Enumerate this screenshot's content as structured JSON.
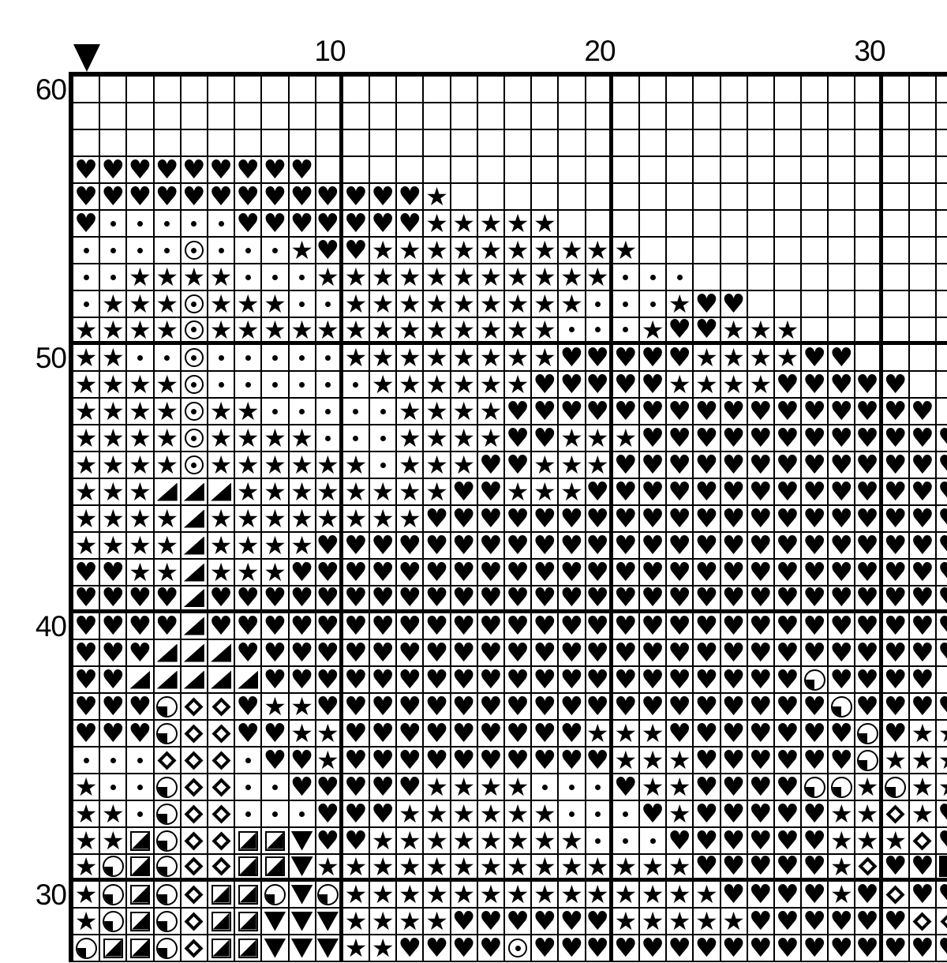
{
  "chart": {
    "type": "cross-stitch-pattern-grid",
    "colors": {
      "foreground": "#000000",
      "background": "#ffffff"
    },
    "column_labels": [
      {
        "label": "10",
        "column": 10
      },
      {
        "label": "20",
        "column": 20
      },
      {
        "label": "30",
        "column": 30
      }
    ],
    "row_labels": [
      {
        "label": "60",
        "row": 1
      },
      {
        "label": "50",
        "row": 11
      },
      {
        "label": "40",
        "row": 21
      },
      {
        "label": "30",
        "row": 31
      }
    ],
    "marker": {
      "icon": "down-triangle-marker",
      "at_column": 1
    },
    "grid": {
      "visible_columns": 33,
      "visible_rows": 33,
      "bold_line_every": 10,
      "symbol_map": {
        ".": "empty",
        "H": "heart",
        "S": "star",
        "d": "dot",
        "O": "circled-dot",
        "T": "triangle-lower-right",
        "Q": "quarter-circle",
        "D": "diamond-outline",
        "X": "half-square",
        "V": "triangle-down",
        "B": "solid-square"
      },
      "glyphs": {
        "heart": "♥",
        "star": "★"
      },
      "rows": [
        ".................................",
        ".................................",
        ".................................",
        "HHHHHHHHH........................",
        "HHHHHHHHHHHHHS...................",
        "HdddddHHHHHHHSSSSS...............",
        "ddddOdddSHHSSSSSSSSSS............",
        "ddSSSSdddSSSSSSSSSSSddd..........",
        "dSSSOSSSddSSSSSSSSSdddSHH........",
        "SSSSOSSSSSSSSSSSSSdddSHHSSS......",
        "SSddOdddddSSSSSSSSHHHHHSSSSHH....",
        "SSSSOddddddSSSSSSHHHHHSSSSHHHHH..",
        "SSSSOSSdddddSSSSHHHHHHHHHHHHHHHH.",
        "SSSSOSSSSdddSSSSHHSSSHHHHHHHHHHHH",
        "SSSSOSSSSSSdSSSHHSSSHHHHHHHHHHHHH",
        "SSSTTTSSSSSSSSHHSSSHHHHHHHHHHHHHH",
        "SSSSTSSSSSSSSHHHHHHHHHHHHHHHHHHHH",
        "SSSSTSSSSHHHHHHHHHHHHHHHHHHHHHHHH",
        "HHSSTSSSHHHHHHHHHHHHHHHHHHHHHHHHH",
        "HHHHTHHHHHHHHHHHHHHHHHHHHHHHHHHHH",
        "HHHHTHHHHHHHHHHHHHHHHHHHHHHHHHHHH",
        "HHHTTTHHHHHHHHHHHHHHHHHHHHHHHHHHH",
        "HHTTTTTHHHHHHHHHHHHHHHHHHHHQHHHH",
        "HHHQDDHSSHHHHHHHHHHHHHHHHHHHQHHHH",
        "HHHQDDHHSSHHHHHHHHHSSSHHHHHHHQHSS",
        "dddDDDdHHSHHHHHHHHHHSSSHHHHHHQSSS",
        "SddQDDddHHHHHSSSSdddHSSHHHHQQSQSS",
        "SSdQDDdddHHHSSSSSSdddHSHHHHHSSDSH",
        "SSXQDDXXVHHSSSSSSSSdddHHHHHHSSSDH",
        "SQXQDDXXVSSSSSSSSSSSSSSHHHHHSDHHB",
        "SQXQDXXQVQSSSSSSSSSSSSSSHHHHSHDHH",
        "SQXQDXXVVVSSSSHHHHHHSSSSSHHHHHHDD",
        "QXXQDXXVVVSSHHHHOHHHHHHHHHHHHHHHH"
      ]
    }
  }
}
